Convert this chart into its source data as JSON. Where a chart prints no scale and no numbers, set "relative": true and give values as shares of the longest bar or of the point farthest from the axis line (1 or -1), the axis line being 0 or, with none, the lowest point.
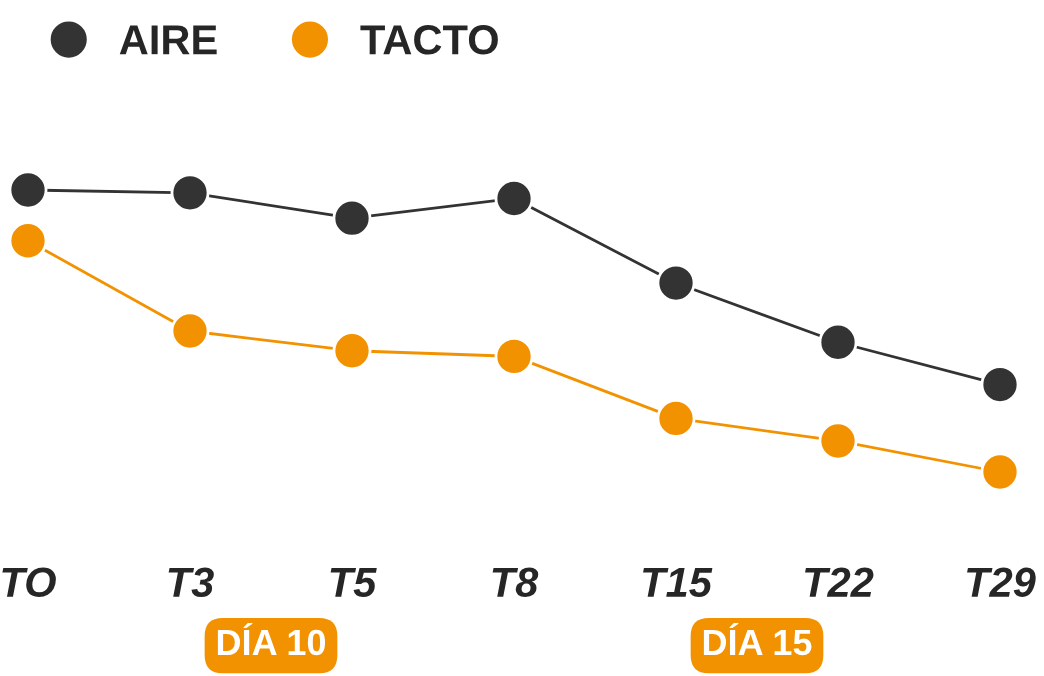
{
  "chart_data": {
    "type": "line",
    "relative": true,
    "categories": [
      "TO",
      "T3",
      "T5",
      "T8",
      "T15",
      "T22",
      "T29"
    ],
    "series": [
      {
        "name": "AIRE",
        "color": "#333333",
        "values": [
          1.0,
          0.99,
          0.9,
          0.97,
          0.67,
          0.46,
          0.31
        ]
      },
      {
        "name": "TACTO",
        "color": "#f39200",
        "values": [
          0.82,
          0.5,
          0.43,
          0.41,
          0.19,
          0.11,
          0.0
        ]
      }
    ],
    "marker": "circle",
    "line_style": "solid",
    "legend": "top left",
    "grid": false,
    "annotations": [
      "DÍA 10",
      "DÍA 15"
    ]
  }
}
